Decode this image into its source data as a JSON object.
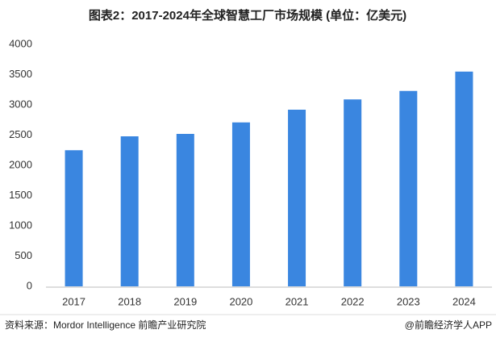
{
  "chart_data": {
    "type": "bar",
    "title": "图表2：2017-2024年全球智慧工厂市场规模 (单位：亿美元)",
    "categories": [
      "2017",
      "2018",
      "2019",
      "2020",
      "2021",
      "2022",
      "2023",
      "2024"
    ],
    "values": [
      2250,
      2480,
      2520,
      2710,
      2920,
      3090,
      3230,
      3550
    ],
    "color": "#3a86e0",
    "ylim": [
      0,
      4000
    ],
    "yticks": [
      0,
      500,
      1000,
      1500,
      2000,
      2500,
      3000,
      3500,
      4000
    ],
    "grid": false,
    "source": "资料来源：Mordor Intelligence 前瞻产业研究院",
    "credit": "@前瞻经济学人APP"
  }
}
